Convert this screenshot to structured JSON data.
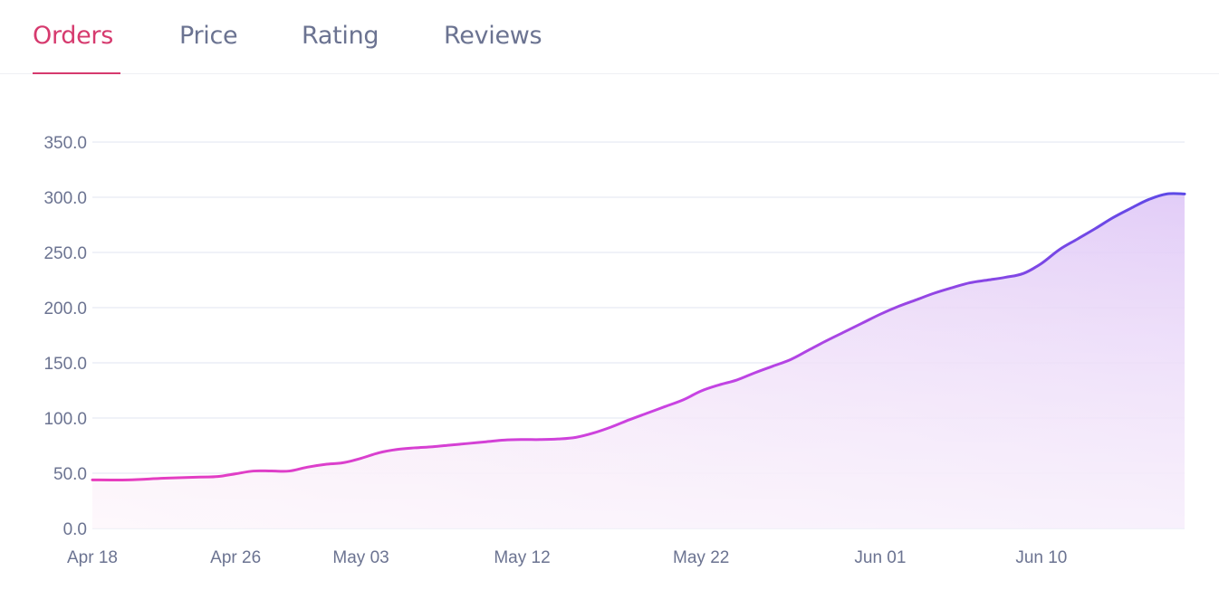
{
  "tabs": [
    {
      "label": "Orders",
      "active": true
    },
    {
      "label": "Price",
      "active": false
    },
    {
      "label": "Rating",
      "active": false
    },
    {
      "label": "Reviews",
      "active": false
    }
  ],
  "colors": {
    "accent": "#d63a6e",
    "tab_inactive": "#6b7391",
    "line_start": "#e83dbd",
    "line_end": "#5b49e6",
    "fill_start": "#f8d9ee",
    "fill_end": "#ddc4f7",
    "grid": "#eceef6"
  },
  "chart_data": {
    "type": "area",
    "title": "",
    "xlabel": "",
    "ylabel": "",
    "ylim": [
      0,
      350
    ],
    "yticks": [
      0,
      50,
      100,
      150,
      200,
      250,
      300,
      350
    ],
    "ytick_labels": [
      "0.0",
      "50.0",
      "100.0",
      "150.0",
      "200.0",
      "250.0",
      "300.0",
      "350.0"
    ],
    "xticks": [
      {
        "day": 0,
        "label": "Apr 18"
      },
      {
        "day": 8,
        "label": "Apr 26"
      },
      {
        "day": 15,
        "label": "May 03"
      },
      {
        "day": 24,
        "label": "May 12"
      },
      {
        "day": 34,
        "label": "May 22"
      },
      {
        "day": 44,
        "label": "Jun 01"
      },
      {
        "day": 53,
        "label": "Jun 10"
      }
    ],
    "xlim": [
      0,
      61
    ],
    "series": [
      {
        "name": "Orders",
        "x": [
          0,
          2,
          4,
          6,
          7,
          8,
          9,
          10,
          11,
          12,
          13,
          14,
          15,
          16,
          17,
          18,
          19,
          20,
          21,
          22,
          23,
          24,
          25,
          26,
          27,
          28,
          29,
          30,
          31,
          32,
          33,
          34,
          35,
          36,
          37,
          38,
          39,
          40,
          41,
          42,
          43,
          44,
          45,
          46,
          47,
          48,
          49,
          50,
          51,
          52,
          53,
          54,
          55,
          56,
          57,
          58,
          59,
          60,
          61
        ],
        "values": [
          44,
          44,
          45.5,
          46.5,
          47,
          49.5,
          52,
          52,
          52,
          55.5,
          58,
          59.5,
          63.5,
          68.5,
          71.5,
          73,
          74,
          75.5,
          77,
          78.5,
          80,
          80.5,
          80.5,
          81,
          82.5,
          86.5,
          92,
          98.5,
          104.5,
          110.5,
          116.5,
          124.5,
          130,
          134.5,
          141,
          147,
          153,
          161.5,
          170,
          178,
          186,
          194,
          201,
          207,
          213,
          218,
          222.5,
          225,
          227.5,
          231,
          240,
          252.5,
          262,
          271.5,
          281.5,
          290,
          298,
          303,
          303
        ]
      }
    ]
  }
}
